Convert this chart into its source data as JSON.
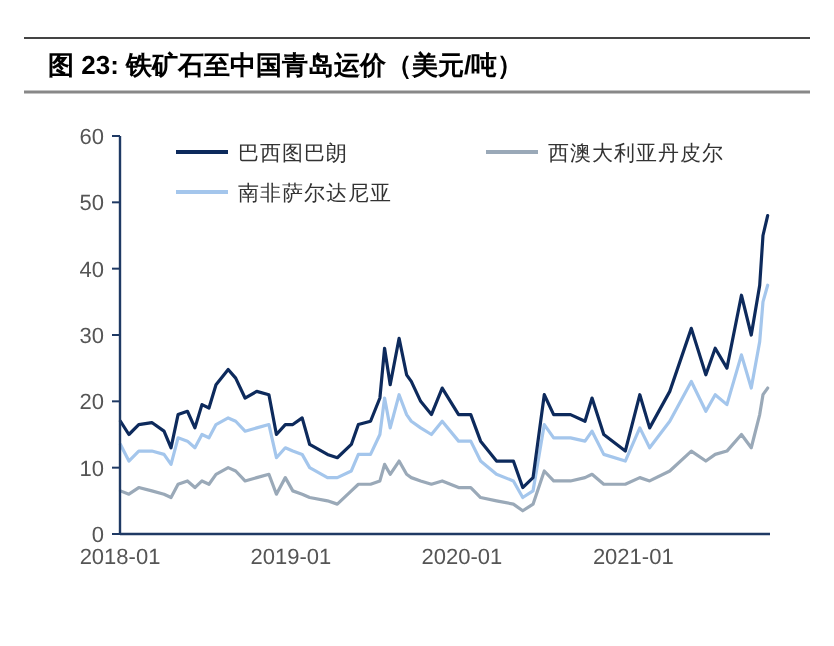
{
  "chart_data": {
    "type": "line",
    "title": "图 23: 铁矿石至中国青岛运价（美元/吨）",
    "x": [
      "2018-01-02",
      "2018-01-20",
      "2018-02-10",
      "2018-03-10",
      "2018-04-05",
      "2018-04-20",
      "2018-05-05",
      "2018-05-25",
      "2018-06-10",
      "2018-06-25",
      "2018-07-10",
      "2018-07-25",
      "2018-08-20",
      "2018-09-05",
      "2018-09-25",
      "2018-10-20",
      "2018-11-15",
      "2018-12-01",
      "2018-12-20",
      "2019-01-05",
      "2019-01-25",
      "2019-02-10",
      "2019-03-20",
      "2019-04-10",
      "2019-05-10",
      "2019-05-25",
      "2019-06-20",
      "2019-07-10",
      "2019-07-20",
      "2019-08-01",
      "2019-08-20",
      "2019-09-05",
      "2019-09-15",
      "2019-10-05",
      "2019-10-28",
      "2019-11-20",
      "2019-12-25",
      "2020-01-20",
      "2020-02-10",
      "2020-03-15",
      "2020-04-20",
      "2020-05-10",
      "2020-06-01",
      "2020-06-25",
      "2020-07-15",
      "2020-08-20",
      "2020-09-20",
      "2020-10-05",
      "2020-10-30",
      "2020-12-15",
      "2021-01-15",
      "2021-02-05",
      "2021-03-20",
      "2021-05-05",
      "2021-06-05",
      "2021-06-25",
      "2021-07-20",
      "2021-08-20",
      "2021-09-10",
      "2021-09-28",
      "2021-10-05",
      "2021-10-15"
    ],
    "series": [
      {
        "name": "巴西图巴朗",
        "color": "#0d2a5c",
        "values": [
          17,
          15,
          16.5,
          16.8,
          15.5,
          13,
          18,
          18.5,
          16,
          19.5,
          19,
          22.5,
          24.8,
          23.5,
          20.5,
          21.5,
          21,
          15,
          16.5,
          16.5,
          17.5,
          13.5,
          12,
          11.5,
          13.5,
          16.5,
          17,
          20.5,
          28,
          22.5,
          29.5,
          24,
          23,
          20,
          18,
          22,
          18,
          18,
          14,
          11,
          11,
          7,
          8.5,
          21,
          18,
          18,
          17,
          20.5,
          15,
          12.5,
          21,
          16,
          21.5,
          31,
          24,
          28,
          25,
          36,
          30,
          37.5,
          45,
          48
        ]
      },
      {
        "name": "西澳大利亚丹皮尔",
        "color": "#9aa9b8",
        "values": [
          6.5,
          6,
          7,
          6.5,
          6,
          5.5,
          7.5,
          8,
          7,
          8,
          7.5,
          9,
          10,
          9.5,
          8,
          8.5,
          9,
          6,
          8.5,
          6.5,
          6,
          5.5,
          5,
          4.5,
          6.5,
          7.5,
          7.5,
          8,
          10.5,
          9,
          11,
          9,
          8.5,
          8,
          7.5,
          8,
          7,
          7,
          5.5,
          5,
          4.5,
          3.5,
          4.5,
          9.5,
          8,
          8,
          8.5,
          9,
          7.5,
          7.5,
          8.5,
          8,
          9.5,
          12.5,
          11,
          12,
          12.5,
          15,
          13,
          18,
          21,
          22
        ]
      },
      {
        "name": "南非萨尔达尼亚",
        "color": "#a4c6ec",
        "values": [
          13.5,
          11,
          12.5,
          12.5,
          12,
          10.5,
          14.5,
          14,
          13,
          15,
          14.5,
          16.5,
          17.5,
          17,
          15.5,
          16,
          16.5,
          11.5,
          13,
          12.5,
          12,
          10,
          8.5,
          8.5,
          9.5,
          12,
          12,
          15,
          20.5,
          16,
          21,
          18,
          17,
          16,
          15,
          17,
          14,
          14,
          11,
          9,
          8,
          5.5,
          6.5,
          16.5,
          14.5,
          14.5,
          14,
          15.5,
          12,
          11,
          16,
          13,
          17,
          23,
          18.5,
          21,
          19.5,
          27,
          22,
          29,
          35,
          37.5
        ]
      }
    ],
    "xlim": [
      "2018-01-01",
      "2021-10-20"
    ],
    "xticks": [
      "2018-01",
      "2019-01",
      "2020-01",
      "2021-01"
    ],
    "ylim": [
      0,
      60
    ],
    "yticks": [
      0,
      10,
      20,
      30,
      40,
      50,
      60
    ],
    "legend": "top",
    "line_style": "solid"
  }
}
